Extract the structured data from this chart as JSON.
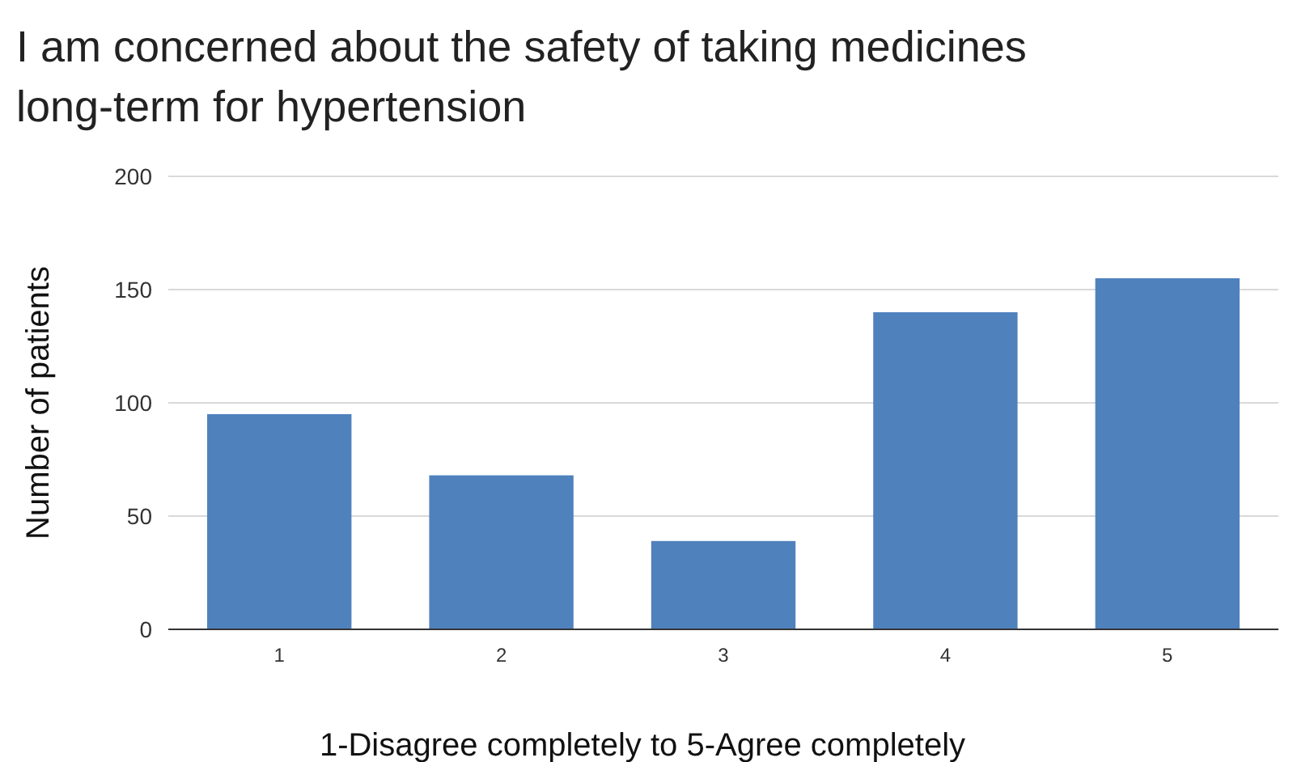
{
  "chart_data": {
    "type": "bar",
    "title": "I am concerned about the safety of taking medicines long-term for hypertension",
    "xlabel": "1-Disagree completely to 5-Agree completely",
    "ylabel": "Number of patients",
    "categories": [
      "1",
      "2",
      "3",
      "4",
      "5"
    ],
    "values": [
      95,
      68,
      39,
      140,
      155
    ],
    "color": "#4f81bd",
    "ylim": [
      0,
      200
    ],
    "yticks": [
      0,
      50,
      100,
      150,
      200
    ],
    "grid": "y"
  }
}
